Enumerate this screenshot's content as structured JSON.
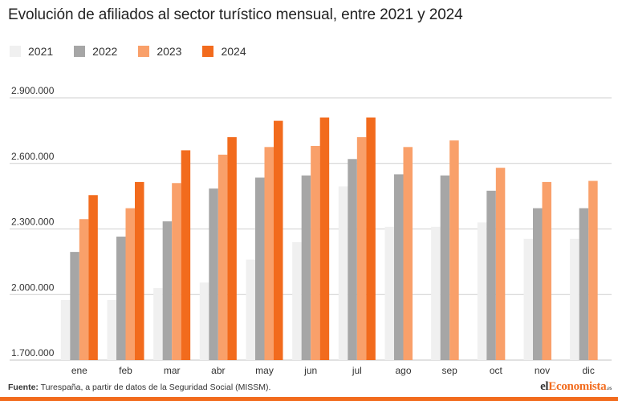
{
  "title": "Evolución de afiliados al sector turístico mensual, entre 2021 y 2024",
  "source_label": "Fuente:",
  "source_text": "Turespaña, a partir de datos de la Seguridad Social (MISSM).",
  "brand": {
    "prefix": "el",
    "accent": "Economista",
    "suffix": ".es"
  },
  "colors": {
    "2021": "#f0f0f0",
    "2022": "#a6a6a6",
    "2023": "#f9a06a",
    "2024": "#f26b1d",
    "grid": "#cfcfcf",
    "brand_accent": "#f26b1d"
  },
  "chart_data": {
    "type": "bar",
    "title": "Evolución de afiliados al sector turístico mensual, entre 2021 y 2024",
    "categories": [
      "ene",
      "feb",
      "mar",
      "abr",
      "may",
      "jun",
      "jul",
      "ago",
      "sep",
      "oct",
      "nov",
      "dic"
    ],
    "series": [
      {
        "name": "2021",
        "color": "#f0f0f0",
        "values": [
          1975000,
          1975000,
          2030000,
          2055000,
          2160000,
          2240000,
          2495000,
          2310000,
          2310000,
          2330000,
          2255000,
          2255000
        ]
      },
      {
        "name": "2022",
        "color": "#a6a6a6",
        "values": [
          2195000,
          2265000,
          2335000,
          2485000,
          2535000,
          2545000,
          2620000,
          2550000,
          2545000,
          2475000,
          2395000,
          2395000
        ]
      },
      {
        "name": "2023",
        "color": "#f9a06a",
        "values": [
          2345000,
          2395000,
          2510000,
          2640000,
          2675000,
          2680000,
          2720000,
          2675000,
          2705000,
          2580000,
          2515000,
          2520000
        ]
      },
      {
        "name": "2024",
        "color": "#f26b1d",
        "values": [
          2455000,
          2515000,
          2660000,
          2720000,
          2795000,
          2810000,
          2810000,
          null,
          null,
          null,
          null,
          null
        ]
      }
    ],
    "yticks": [
      1700000,
      2000000,
      2300000,
      2600000,
      2900000
    ],
    "ytick_labels": [
      "1.700.000",
      "2.000.000",
      "2.300.000",
      "2.600.000",
      "2.900.000"
    ],
    "ylim": [
      1700000,
      2900000
    ],
    "grid": true,
    "legend_position": "top-left"
  }
}
